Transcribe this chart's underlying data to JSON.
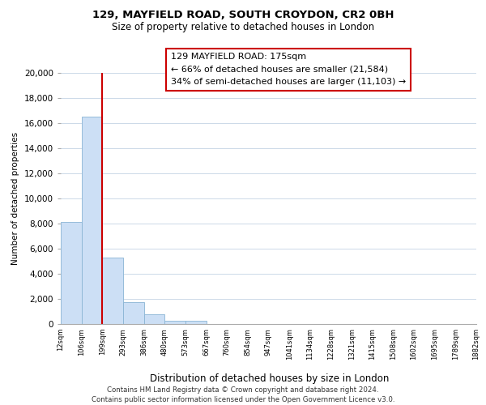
{
  "title": "129, MAYFIELD ROAD, SOUTH CROYDON, CR2 0BH",
  "subtitle": "Size of property relative to detached houses in London",
  "xlabel": "Distribution of detached houses by size in London",
  "ylabel": "Number of detached properties",
  "bar_values": [
    8100,
    16500,
    5300,
    1750,
    750,
    280,
    280,
    0,
    0,
    0,
    0,
    0,
    0,
    0,
    0,
    0,
    0,
    0,
    0,
    0
  ],
  "bar_labels": [
    "12sqm",
    "106sqm",
    "199sqm",
    "293sqm",
    "386sqm",
    "480sqm",
    "573sqm",
    "667sqm",
    "760sqm",
    "854sqm",
    "947sqm",
    "1041sqm",
    "1134sqm",
    "1228sqm",
    "1321sqm",
    "1415sqm",
    "1508sqm",
    "1602sqm",
    "1695sqm",
    "1789sqm",
    "1882sqm"
  ],
  "bar_color": "#ccdff5",
  "bar_edge_color": "#8ab4d4",
  "property_line_label": "129 MAYFIELD ROAD: 175sqm",
  "annotation_line1": "← 66% of detached houses are smaller (21,584)",
  "annotation_line2": "34% of semi-detached houses are larger (11,103) →",
  "annotation_box_color": "#ffffff",
  "annotation_box_edge": "#cc0000",
  "line_color": "#cc0000",
  "ylim": [
    0,
    20000
  ],
  "yticks": [
    0,
    2000,
    4000,
    6000,
    8000,
    10000,
    12000,
    14000,
    16000,
    18000,
    20000
  ],
  "footer_line1": "Contains HM Land Registry data © Crown copyright and database right 2024.",
  "footer_line2": "Contains public sector information licensed under the Open Government Licence v3.0.",
  "background_color": "#ffffff",
  "grid_color": "#ccd9e8"
}
